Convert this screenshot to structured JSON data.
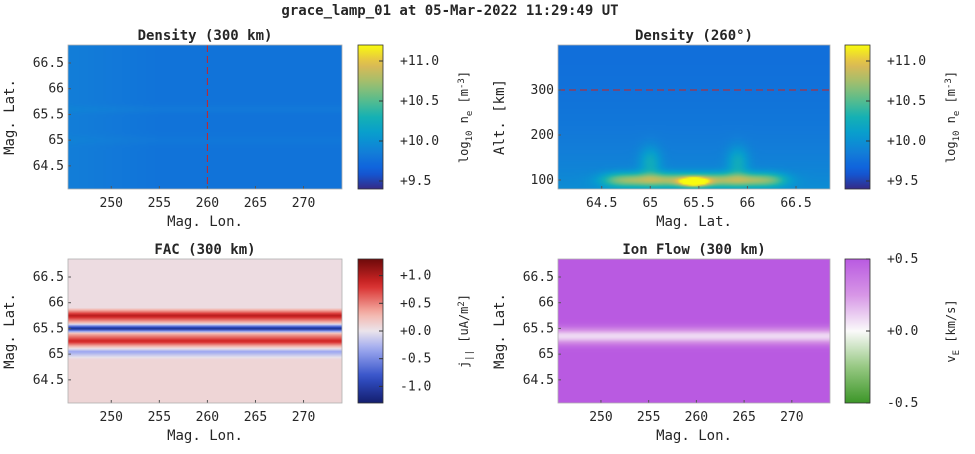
{
  "figure": {
    "title": "grace_lamp_01 at 05-Mar-2022 11:29:49 UT"
  },
  "chart_data": [
    {
      "id": "density_300km",
      "type": "heatmap",
      "title": "Density (300 km)",
      "xlabel": "Mag. Lon.",
      "ylabel": "Mag. Lat.",
      "xlim": [
        245.5,
        274
      ],
      "ylim": [
        64.05,
        66.85
      ],
      "xticks": [
        250,
        255,
        260,
        265,
        270
      ],
      "xtick_labels": [
        "250",
        "255",
        "260",
        "265",
        "270"
      ],
      "yticks": [
        64.5,
        65,
        65.5,
        66,
        66.5
      ],
      "ytick_labels": [
        "64.5",
        "65",
        "65.5",
        "66",
        "66.5"
      ],
      "marker_line": {
        "axis": "x",
        "value": 260,
        "color": "#cc2222",
        "style": "dashed"
      },
      "colorbar": {
        "colormap": "parula",
        "range": [
          9.4,
          11.2
        ],
        "ticks": [
          9.5,
          10.0,
          10.5,
          11.0
        ],
        "tick_labels": [
          "+9.5",
          "+10.0",
          "+10.5",
          "+11.0"
        ],
        "label_main": "log",
        "label_sub": "10",
        "label_mid": " n",
        "label_sub2": "e",
        "label_end": " [m",
        "label_sup": "-3",
        "label_close": "]"
      },
      "field": {
        "base": 9.78,
        "left_excess": 0.08,
        "bands": [
          {
            "lat": 65.6,
            "width": 0.08,
            "amp": 0.04
          },
          {
            "lat": 65.0,
            "width": 0.1,
            "amp": 0.03
          }
        ]
      }
    },
    {
      "id": "density_260deg",
      "type": "heatmap",
      "title": "Density (260°)",
      "xlabel": "Mag. Lat.",
      "ylabel": "Alt. [km]",
      "xlim": [
        64.05,
        66.85
      ],
      "ylim": [
        80,
        400
      ],
      "xticks": [
        64.5,
        65,
        65.5,
        66,
        66.5
      ],
      "xtick_labels": [
        "64.5",
        "65",
        "65.5",
        "66",
        "66.5"
      ],
      "yticks": [
        100,
        200,
        300
      ],
      "ytick_labels": [
        "100",
        "200",
        "300"
      ],
      "marker_line": {
        "axis": "y",
        "value": 300,
        "color": "#cc2222",
        "style": "dashed"
      },
      "colorbar": {
        "colormap": "parula",
        "range": [
          9.4,
          11.2
        ],
        "ticks": [
          9.5,
          10.0,
          10.5,
          11.0
        ],
        "tick_labels": [
          "+9.5",
          "+10.0",
          "+10.5",
          "+11.0"
        ],
        "label_main": "log",
        "label_sub": "10",
        "label_mid": " n",
        "label_sub2": "e",
        "label_end": " [m",
        "label_sup": "-3",
        "label_close": "]"
      },
      "field": {
        "base": 9.72,
        "e_layer_alt": 100,
        "e_layer_peak": 10.55,
        "arc_center_lat": 65.45,
        "arc_peak": 11.2
      }
    },
    {
      "id": "fac_300km",
      "type": "heatmap",
      "title": "FAC (300 km)",
      "xlabel": "Mag. Lon.",
      "ylabel": "Mag. Lat.",
      "xlim": [
        245.5,
        274
      ],
      "ylim": [
        64.05,
        66.85
      ],
      "xticks": [
        250,
        255,
        260,
        265,
        270
      ],
      "xtick_labels": [
        "250",
        "255",
        "260",
        "265",
        "270"
      ],
      "yticks": [
        64.5,
        65,
        65.5,
        66,
        66.5
      ],
      "ytick_labels": [
        "64.5",
        "65",
        "65.5",
        "66",
        "66.5"
      ],
      "colorbar": {
        "colormap": "redblue",
        "range": [
          -1.3,
          1.3
        ],
        "ticks": [
          -1.0,
          -0.5,
          0.0,
          0.5,
          1.0
        ],
        "tick_labels": [
          "-1.0",
          "-0.5",
          "+0.0",
          "+0.5",
          "+1.0"
        ],
        "label_main": "j",
        "label_sub": "||",
        "label_mid": " [uA/m",
        "label_sup": "2",
        "label_close": "]"
      },
      "field": {
        "profile_lat": [
          64.05,
          64.9,
          65.05,
          65.25,
          65.4,
          65.5,
          65.6,
          65.75,
          65.9,
          66.85
        ],
        "profile_val": [
          0.1,
          0.1,
          -0.35,
          0.9,
          0.3,
          -1.2,
          0.2,
          1.0,
          0.05,
          0.05
        ]
      }
    },
    {
      "id": "ion_flow_300km",
      "type": "heatmap",
      "title": "Ion Flow (300 km)",
      "xlabel": "Mag. Lon.",
      "ylabel": "Mag. Lat.",
      "xlim": [
        245.5,
        274
      ],
      "ylim": [
        64.05,
        66.85
      ],
      "xticks": [
        250,
        255,
        260,
        265,
        270
      ],
      "xtick_labels": [
        "250",
        "255",
        "260",
        "265",
        "270"
      ],
      "yticks": [
        64.5,
        65,
        65.5,
        66,
        66.5
      ],
      "ytick_labels": [
        "64.5",
        "65",
        "65.5",
        "66",
        "66.5"
      ],
      "colorbar": {
        "colormap": "greenwhitemagenta",
        "range": [
          -0.5,
          0.5
        ],
        "ticks": [
          -0.5,
          0.0,
          0.5
        ],
        "tick_labels": [
          "-0.5",
          "+0.0",
          "+0.5"
        ],
        "label_main": "v",
        "label_sub": "E",
        "label_mid": " [km/s]"
      },
      "field": {
        "base": 0.5,
        "dip_lat": 65.35,
        "dip_width": 0.15,
        "dip_min": 0.08
      }
    }
  ]
}
